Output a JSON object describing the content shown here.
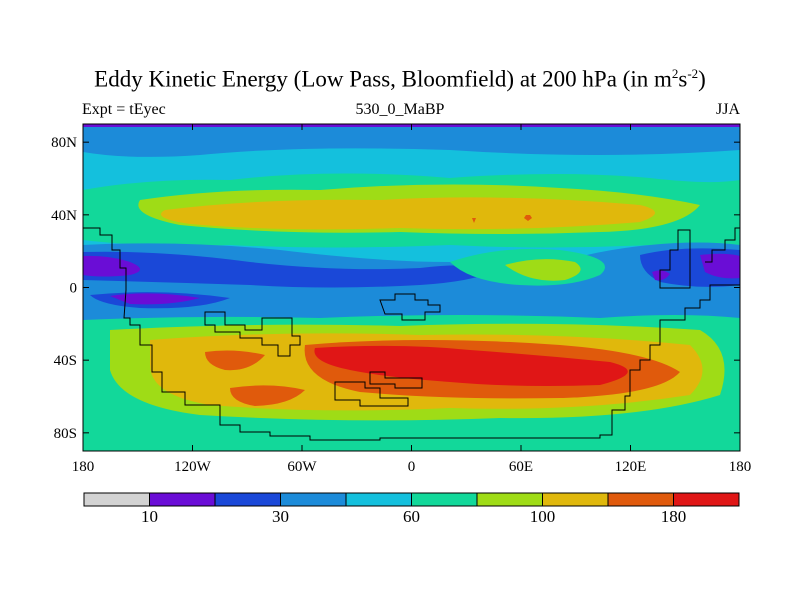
{
  "title": {
    "main": "Eddy Kinetic Energy (Low Pass, Bloomfield) at 200 hPa (in m",
    "sup1": "2",
    "mid": "s",
    "sup2": "-2",
    "end": ")"
  },
  "subtitle": {
    "left": "Expt = tEyec",
    "center": "530_0_MaBP",
    "right": "JJA"
  },
  "axes": {
    "y_ticks": [
      {
        "label": "80N",
        "value": 80
      },
      {
        "label": "40N",
        "value": 40
      },
      {
        "label": "0",
        "value": 0
      },
      {
        "label": "40S",
        "value": -40
      },
      {
        "label": "80S",
        "value": -80
      }
    ],
    "x_ticks": [
      {
        "label": "180",
        "value": -180
      },
      {
        "label": "120W",
        "value": -120
      },
      {
        "label": "60W",
        "value": -60
      },
      {
        "label": "0",
        "value": 0
      },
      {
        "label": "60E",
        "value": 60
      },
      {
        "label": "120E",
        "value": 120
      },
      {
        "label": "180",
        "value": 180
      }
    ],
    "lon_range": [
      -180,
      180
    ],
    "lat_range": [
      -90,
      90
    ]
  },
  "colorbar": {
    "colors": [
      "#d3d3d3",
      "#6a0dd6",
      "#1a48d8",
      "#1c8bd9",
      "#14c0dd",
      "#12d89a",
      "#9fdc16",
      "#e0b80c",
      "#e05a0c",
      "#e01616"
    ],
    "labels": [
      {
        "text": "10",
        "index": 1
      },
      {
        "text": "30",
        "index": 3
      },
      {
        "text": "60",
        "index": 5
      },
      {
        "text": "100",
        "index": 7
      },
      {
        "text": "180",
        "index": 9
      }
    ]
  },
  "chart_data": {
    "type": "heatmap",
    "title": "Eddy Kinetic Energy (Low Pass, Bloomfield) at 200 hPa (in m2s-2)",
    "variable": "Eddy Kinetic Energy",
    "units": "m2s-2",
    "level": "200 hPa",
    "season": "JJA",
    "experiment": "tEyec",
    "case": "530_0_MaBP",
    "x_axis": "longitude",
    "y_axis": "latitude",
    "colorbar_bounds": [
      10,
      20,
      30,
      45,
      60,
      80,
      100,
      140,
      180
    ],
    "colorbar_labels": [
      "10",
      "30",
      "60",
      "100",
      "180"
    ],
    "features": [
      {
        "region": "northern mid-latitudes 30N-50N",
        "level_band": "100-140"
      },
      {
        "region": "equatorial eastern Pacific 0-20N",
        "level_band": "10-20"
      },
      {
        "region": "southern mid-latitudes 30S-60S, 30W-120E",
        "level_band": "140-180+"
      },
      {
        "region": "high latitudes",
        "level_band": "45-80"
      }
    ]
  }
}
